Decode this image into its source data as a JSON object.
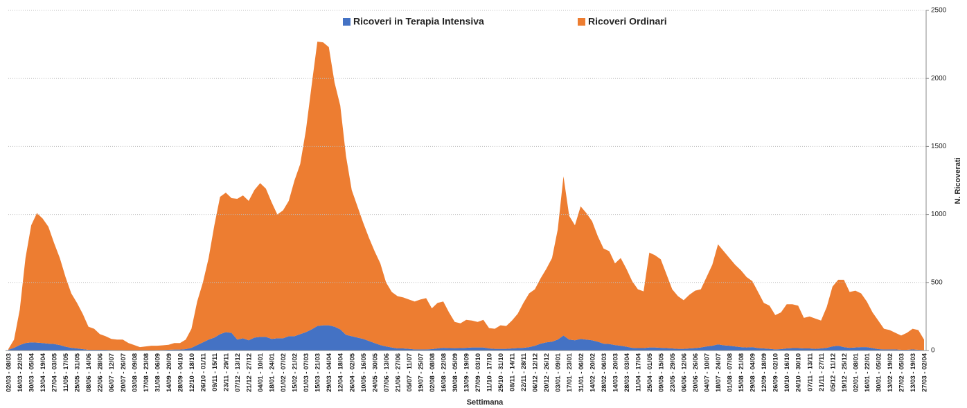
{
  "chart_data": {
    "type": "stacked-area",
    "x_label": "Settimana",
    "y_label": "N. Ricoverati",
    "categories": [
      "02/03 - 08/03",
      null,
      "16/03 - 22/03",
      null,
      "30/03 - 05/04",
      null,
      "13/04 - 19/04",
      null,
      "27/04 - 03/05",
      null,
      "11/05 - 17/05",
      null,
      "25/05 - 31/05",
      null,
      "08/06 - 14/06",
      null,
      "22/06 - 28/06",
      null,
      "06/07 - 12/07",
      null,
      "20/07 - 26/07",
      null,
      "03/08 - 09/08",
      null,
      "17/08 - 23/08",
      null,
      "31/08 - 06/09",
      null,
      "14/09 - 20/09",
      null,
      "28/09 - 04/10",
      null,
      "12/10 - 18/10",
      null,
      "26/10 - 01/11",
      null,
      "09/11 - 15/11",
      null,
      "23/11 - 29/11",
      null,
      "07/12 - 13/12",
      null,
      "21/12 - 27/12",
      null,
      "04/01 - 10/01",
      null,
      "18/01 - 24/01",
      null,
      "01/02 - 07/02",
      null,
      "15/02 - 21/02",
      null,
      "01/03 - 07/03",
      null,
      "15/03 - 21/03",
      null,
      "29/03 - 04/04",
      null,
      "12/04 - 18/04",
      null,
      "26/04 - 02/05",
      null,
      "10/05 - 16/05",
      null,
      "24/05 - 30/05",
      null,
      "07/06 - 13/06",
      null,
      "21/06 - 27/06",
      null,
      "05/07 - 11/07",
      null,
      "19/07 - 25/07",
      null,
      "02/08 - 08/08",
      null,
      "16/08 - 22/08",
      null,
      "30/08 - 05/09",
      null,
      "13/09 - 19/09",
      null,
      "27/09 - 03/10",
      null,
      "11/10 - 17/10",
      null,
      "25/10 - 31/10",
      null,
      "08/11 - 14/11",
      null,
      "22/11 - 28/11",
      null,
      "06/12 - 12/12",
      null,
      "20/12 - 26/12",
      null,
      "03/01 - 09/01",
      null,
      "17/01 - 23/01",
      null,
      "31/01 - 06/02",
      null,
      "14/02 - 20/02",
      null,
      "28/02 - 06/03",
      null,
      "14/03 - 20/03",
      null,
      "28/03 - 03/04",
      null,
      "11/04 - 17/04",
      null,
      "25/04 - 01/05",
      null,
      "09/05 - 15/05",
      null,
      "23/05 - 29/05",
      null,
      "06/06 - 12/06",
      null,
      "20/06 - 26/06",
      null,
      "04/07 - 10/07",
      null,
      "18/07 - 24/07",
      null,
      "01/08 - 07/08",
      null,
      "15/08 - 21/08",
      null,
      "29/08 - 04/09",
      null,
      "12/09 - 18/09",
      null,
      "26/09 - 02/10",
      null,
      "10/10 - 16/10",
      null,
      "24/10 - 30/10",
      null,
      "07/11 - 13/11",
      null,
      "21/11 - 27/11",
      null,
      "05/12 - 11/12",
      null,
      "19/12 - 25/12",
      null,
      "02/01 - 08/01",
      null,
      "16/01 - 22/01",
      null,
      "30/01 - 05/02",
      null,
      "13/02 - 19/02",
      null,
      "27/02 - 05/03",
      null,
      "13/03 - 19/03",
      null,
      "27/03 - 02/04"
    ],
    "series": [
      {
        "name": "Ricoveri in Terapia Intensiva",
        "color": "#4472c4",
        "values": [
          5,
          20,
          40,
          55,
          60,
          58,
          55,
          50,
          48,
          40,
          28,
          20,
          15,
          10,
          5,
          5,
          5,
          5,
          4,
          3,
          3,
          2,
          2,
          2,
          2,
          2,
          3,
          4,
          5,
          7,
          7,
          10,
          20,
          40,
          60,
          80,
          95,
          120,
          135,
          130,
          80,
          90,
          75,
          95,
          100,
          100,
          85,
          90,
          90,
          105,
          105,
          120,
          135,
          155,
          180,
          185,
          185,
          175,
          155,
          115,
          105,
          95,
          85,
          70,
          55,
          40,
          30,
          22,
          15,
          15,
          12,
          8,
          8,
          8,
          10,
          15,
          20,
          18,
          17,
          18,
          20,
          22,
          22,
          22,
          15,
          12,
          12,
          12,
          15,
          18,
          20,
          25,
          35,
          50,
          60,
          65,
          80,
          110,
          80,
          75,
          85,
          80,
          75,
          65,
          50,
          48,
          40,
          35,
          28,
          20,
          18,
          18,
          22,
          22,
          20,
          18,
          15,
          12,
          12,
          15,
          18,
          22,
          30,
          35,
          45,
          38,
          35,
          30,
          25,
          22,
          25,
          18,
          15,
          12,
          8,
          10,
          15,
          18,
          18,
          15,
          15,
          12,
          15,
          20,
          30,
          35,
          25,
          20,
          22,
          25,
          25,
          18,
          10,
          8,
          8,
          8,
          5,
          5,
          8,
          5,
          3
        ]
      },
      {
        "name": "Ricoveri Ordinari",
        "color": "#ed7d31",
        "values": [
          5,
          60,
          260,
          625,
          860,
          952,
          915,
          860,
          742,
          640,
          512,
          400,
          335,
          260,
          170,
          155,
          115,
          100,
          81,
          77,
          77,
          53,
          38,
          23,
          28,
          33,
          32,
          34,
          37,
          48,
          48,
          70,
          140,
          320,
          440,
          600,
          825,
          1010,
          1025,
          990,
          1035,
          1050,
          1025,
          1085,
          1130,
          1090,
          1005,
          910,
          940,
          995,
          1145,
          1250,
          1485,
          1795,
          2090,
          2080,
          2045,
          1795,
          1645,
          1315,
          1075,
          965,
          855,
          760,
          675,
          600,
          470,
          408,
          385,
          375,
          363,
          352,
          367,
          377,
          300,
          335,
          340,
          262,
          193,
          182,
          205,
          198,
          188,
          203,
          150,
          148,
          173,
          168,
          205,
          252,
          330,
          395,
          415,
          480,
          540,
          615,
          810,
          1170,
          910,
          845,
          975,
          930,
          875,
          775,
          700,
          682,
          600,
          645,
          572,
          490,
          432,
          417,
          698,
          678,
          650,
          542,
          435,
          388,
          358,
          395,
          422,
          428,
          510,
          595,
          735,
          692,
          645,
          600,
          565,
          518,
          485,
          412,
          335,
          318,
          252,
          270,
          325,
          322,
          312,
          225,
          235,
          223,
          205,
          300,
          440,
          485,
          495,
          410,
          418,
          395,
          335,
          262,
          210,
          152,
          142,
          122,
          105,
          125,
          152,
          145,
          77
        ]
      }
    ],
    "ylim": [
      0,
      2500
    ],
    "yticks": [
      0,
      500,
      1000,
      1500,
      2000,
      2500
    ],
    "grid": true,
    "y_axis_side": "right",
    "legend": "top"
  }
}
